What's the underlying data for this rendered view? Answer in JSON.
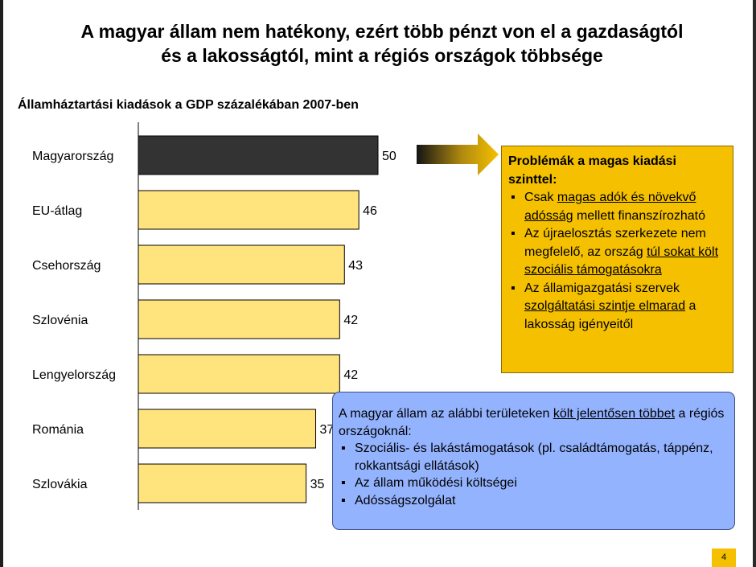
{
  "title": {
    "line1": "A magyar állam nem hatékony, ezért több pénzt von el a gazdaságtól",
    "line2": "és a lakosságtól, mint a régiós országok többsége"
  },
  "chart_data": {
    "type": "bar",
    "orientation": "horizontal",
    "title": "Államháztartási kiadások a GDP százalékában 2007-ben",
    "categories": [
      "Magyarország",
      "EU-átlag",
      "Csehország",
      "Szlovénia",
      "Lengyelország",
      "Románia",
      "Szlovákia"
    ],
    "values": [
      50,
      46,
      43,
      42,
      42,
      37,
      35
    ],
    "data_labels": [
      "50",
      "46",
      "43",
      "42",
      "42",
      "37",
      "35"
    ],
    "highlight_index": 0,
    "colors": {
      "highlight": "#333333",
      "default": "#ffe37d",
      "border": "#000000"
    },
    "xlabel": "",
    "ylabel": ""
  },
  "problems_box": {
    "heading": "Problémák a magas kiadási szinttel:",
    "items": [
      [
        {
          "t": "Csak "
        },
        {
          "t": "magas adók és növekvő adósság",
          "u": true
        },
        {
          "t": " mellett finanszírozható"
        }
      ],
      [
        {
          "t": "Az újraelosztás szerkezete nem megfelelő, az ország "
        },
        {
          "t": "túl sokat költ szociális támogatásokra",
          "u": true
        }
      ],
      [
        {
          "t": "Az államigazgatási szervek "
        },
        {
          "t": "szolgáltatási szintje elmarad",
          "u": true
        },
        {
          "t": " a lakosság igényeitől"
        }
      ]
    ],
    "color": "#f5c000"
  },
  "areas_box": {
    "intro": [
      {
        "t": "A magyar állam az alábbi területeken "
      },
      {
        "t": "költ jelentősen többet",
        "u": true
      },
      {
        "t": " a régiós országoknál:"
      }
    ],
    "items": [
      "Szociális- és lakástámogatások (pl. családtámogatás, táppénz, rokkantsági ellátások)",
      "Az állam működési költségei",
      "Adósságszolgálat"
    ],
    "color": "#94b3ff"
  },
  "page_number": "4"
}
